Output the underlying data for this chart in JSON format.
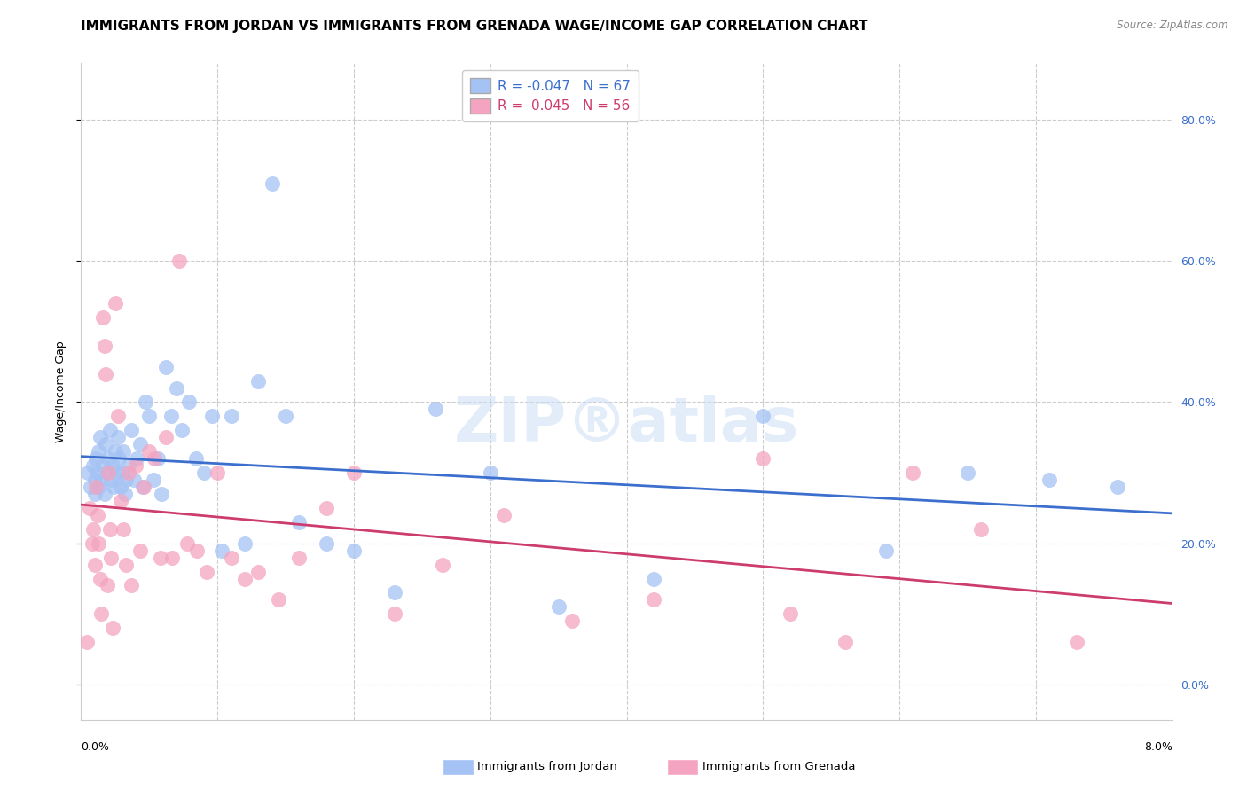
{
  "title": "IMMIGRANTS FROM JORDAN VS IMMIGRANTS FROM GRENADA WAGE/INCOME GAP CORRELATION CHART",
  "source": "Source: ZipAtlas.com",
  "ylabel": "Wage/Income Gap",
  "right_yticks": [
    0.0,
    0.2,
    0.4,
    0.6,
    0.8
  ],
  "right_yticklabels": [
    "0.0%",
    "20.0%",
    "40.0%",
    "60.0%",
    "80.0%"
  ],
  "legend_label_jordan": "Immigrants from Jordan",
  "legend_label_grenada": "Immigrants from Grenada",
  "jordan_color": "#a4c2f4",
  "grenada_color": "#f4a4c0",
  "jordan_line_color": "#3c6fcd",
  "grenada_line_color": "#cd3c6f",
  "jordan_R": -0.047,
  "jordan_N": 67,
  "grenada_R": 0.045,
  "grenada_N": 56,
  "xlim": [
    0.0,
    0.08
  ],
  "ylim": [
    -0.05,
    0.88
  ],
  "jordan_points_x": [
    0.0005,
    0.0007,
    0.0009,
    0.001,
    0.001,
    0.0011,
    0.0012,
    0.0013,
    0.0013,
    0.0014,
    0.0015,
    0.0016,
    0.0017,
    0.0018,
    0.0019,
    0.002,
    0.0021,
    0.0022,
    0.0023,
    0.0024,
    0.0025,
    0.0026,
    0.0027,
    0.0028,
    0.0029,
    0.003,
    0.0031,
    0.0032,
    0.0033,
    0.0035,
    0.0037,
    0.0039,
    0.0041,
    0.0043,
    0.0045,
    0.0047,
    0.005,
    0.0053,
    0.0056,
    0.0059,
    0.0062,
    0.0066,
    0.007,
    0.0074,
    0.0079,
    0.0084,
    0.009,
    0.0096,
    0.0103,
    0.011,
    0.012,
    0.013,
    0.014,
    0.015,
    0.016,
    0.018,
    0.02,
    0.023,
    0.026,
    0.03,
    0.035,
    0.042,
    0.05,
    0.059,
    0.065,
    0.071,
    0.076
  ],
  "jordan_points_y": [
    0.3,
    0.28,
    0.31,
    0.27,
    0.29,
    0.32,
    0.3,
    0.33,
    0.28,
    0.35,
    0.29,
    0.31,
    0.27,
    0.34,
    0.3,
    0.32,
    0.36,
    0.29,
    0.31,
    0.28,
    0.33,
    0.3,
    0.35,
    0.32,
    0.28,
    0.3,
    0.33,
    0.27,
    0.29,
    0.31,
    0.36,
    0.29,
    0.32,
    0.34,
    0.28,
    0.4,
    0.38,
    0.29,
    0.32,
    0.27,
    0.45,
    0.38,
    0.42,
    0.36,
    0.4,
    0.32,
    0.3,
    0.38,
    0.19,
    0.38,
    0.2,
    0.43,
    0.71,
    0.38,
    0.23,
    0.2,
    0.19,
    0.13,
    0.39,
    0.3,
    0.11,
    0.15,
    0.38,
    0.19,
    0.3,
    0.29,
    0.28
  ],
  "grenada_points_x": [
    0.0004,
    0.0006,
    0.0008,
    0.0009,
    0.001,
    0.0011,
    0.0012,
    0.0013,
    0.0014,
    0.0015,
    0.0016,
    0.0017,
    0.0018,
    0.0019,
    0.002,
    0.0021,
    0.0022,
    0.0023,
    0.0025,
    0.0027,
    0.0029,
    0.0031,
    0.0033,
    0.0035,
    0.0037,
    0.004,
    0.0043,
    0.0046,
    0.005,
    0.0054,
    0.0058,
    0.0062,
    0.0067,
    0.0072,
    0.0078,
    0.0085,
    0.0092,
    0.01,
    0.011,
    0.012,
    0.013,
    0.0145,
    0.016,
    0.018,
    0.02,
    0.023,
    0.0265,
    0.031,
    0.036,
    0.042,
    0.05,
    0.052,
    0.056,
    0.061,
    0.066,
    0.073
  ],
  "grenada_points_y": [
    0.06,
    0.25,
    0.2,
    0.22,
    0.17,
    0.28,
    0.24,
    0.2,
    0.15,
    0.1,
    0.52,
    0.48,
    0.44,
    0.14,
    0.3,
    0.22,
    0.18,
    0.08,
    0.54,
    0.38,
    0.26,
    0.22,
    0.17,
    0.3,
    0.14,
    0.31,
    0.19,
    0.28,
    0.33,
    0.32,
    0.18,
    0.35,
    0.18,
    0.6,
    0.2,
    0.19,
    0.16,
    0.3,
    0.18,
    0.15,
    0.16,
    0.12,
    0.18,
    0.25,
    0.3,
    0.1,
    0.17,
    0.24,
    0.09,
    0.12,
    0.32,
    0.1,
    0.06,
    0.3,
    0.22,
    0.06
  ],
  "background_color": "#ffffff",
  "grid_color": "#cccccc",
  "title_fontsize": 11,
  "axis_label_fontsize": 9,
  "tick_fontsize": 9,
  "source_fontsize": 8.5
}
